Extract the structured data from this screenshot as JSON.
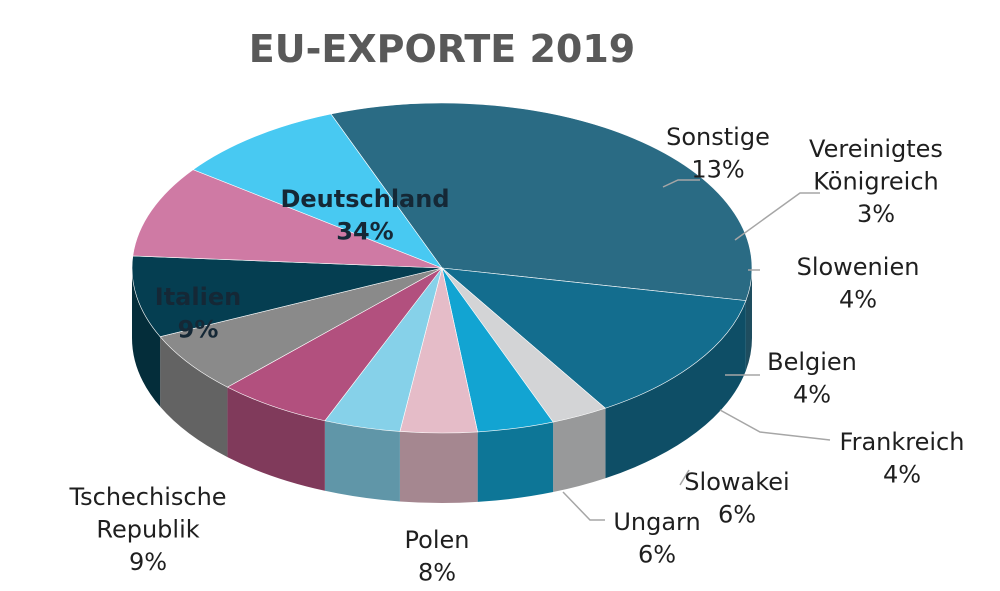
{
  "chart_data": {
    "type": "pie",
    "title": "EU-EXPORTE 2019",
    "slices": [
      {
        "label": [
          "Deutschland"
        ],
        "value": 34,
        "value_label": "34%",
        "color": "#2a6b84"
      },
      {
        "label": [
          "Sonstige"
        ],
        "value": 13,
        "value_label": "13%",
        "color": "#136d8e"
      },
      {
        "label": [
          "Vereinigtes",
          "Königreich"
        ],
        "value": 3,
        "value_label": "3%",
        "color": "#d3d4d6"
      },
      {
        "label": [
          "Slowenien"
        ],
        "value": 4,
        "value_label": "4%",
        "color": "#12a4d2"
      },
      {
        "label": [
          "Belgien"
        ],
        "value": 4,
        "value_label": "4%",
        "color": "#e5bcc8"
      },
      {
        "label": [
          "Frankreich"
        ],
        "value": 4,
        "value_label": "4%",
        "color": "#86d1e9"
      },
      {
        "label": [
          "Slowakei"
        ],
        "value": 6,
        "value_label": "6%",
        "color": "#b2507e"
      },
      {
        "label": [
          "Ungarn"
        ],
        "value": 6,
        "value_label": "6%",
        "color": "#8a8a8a"
      },
      {
        "label": [
          "Polen"
        ],
        "value": 8,
        "value_label": "8%",
        "color": "#053e51"
      },
      {
        "label": [
          "Tschechische",
          "Republik"
        ],
        "value": 9,
        "value_label": "9%",
        "color": "#cf7aa4"
      },
      {
        "label": [
          "Italien"
        ],
        "value": 9,
        "value_label": "9%",
        "color": "#48c9f2"
      }
    ]
  }
}
